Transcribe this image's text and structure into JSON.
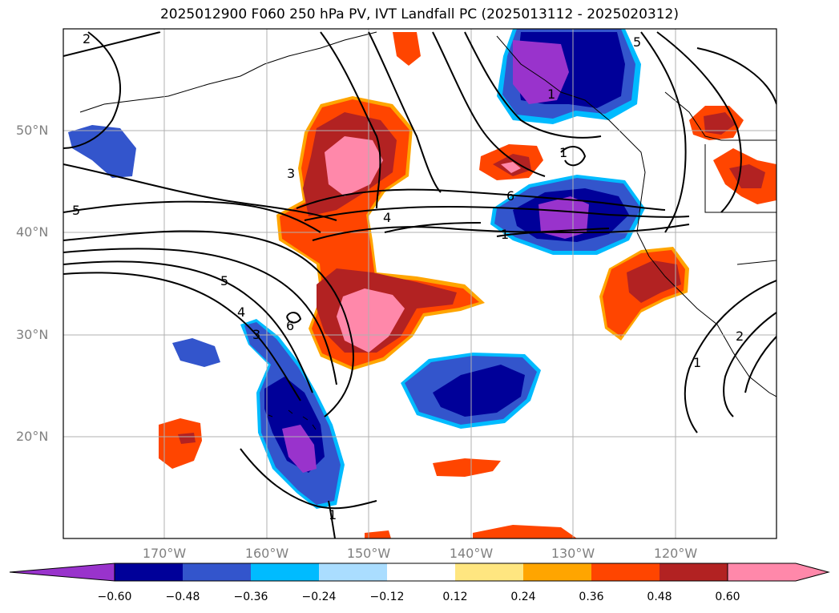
{
  "title": "2025012900 F060 250 hPa PV, IVT Landfall PC (2025013112 - 2025020312)",
  "map": {
    "lat_labels": [
      "50°N",
      "40°N",
      "30°N",
      "20°N"
    ],
    "lon_labels": [
      "170°W",
      "160°W",
      "150°W",
      "140°W",
      "130°W",
      "120°W"
    ],
    "contour_labels": [
      "2",
      "5",
      "3",
      "4",
      "6",
      "1",
      "5",
      "4",
      "3",
      "6",
      "1",
      "5",
      "1",
      "1",
      "1",
      "2"
    ]
  },
  "colorbar": {
    "ticks": [
      "−0.60",
      "−0.48",
      "−0.36",
      "−0.24",
      "−0.12",
      "0.12",
      "0.24",
      "0.36",
      "0.48",
      "0.60"
    ],
    "colors": [
      "#9933cc",
      "#000099",
      "#3355cc",
      "#00bbff",
      "#aaddff",
      "#ffffff",
      "#ffe680",
      "#ffa500",
      "#ff4500",
      "#b22222",
      "#ff88aa",
      "#ff88aa"
    ]
  },
  "colors": {
    "neg_strong": "#9933cc",
    "neg_dark": "#000099",
    "neg_mid": "#3355cc",
    "neg_light": "#00bbff",
    "pos_light": "#ffe680",
    "pos_orange": "#ffa500",
    "pos_red": "#ff4500",
    "pos_dark": "#b22222",
    "pos_pink": "#ff88aa",
    "grid": "#b0b0b0",
    "label_gray": "#808080"
  }
}
